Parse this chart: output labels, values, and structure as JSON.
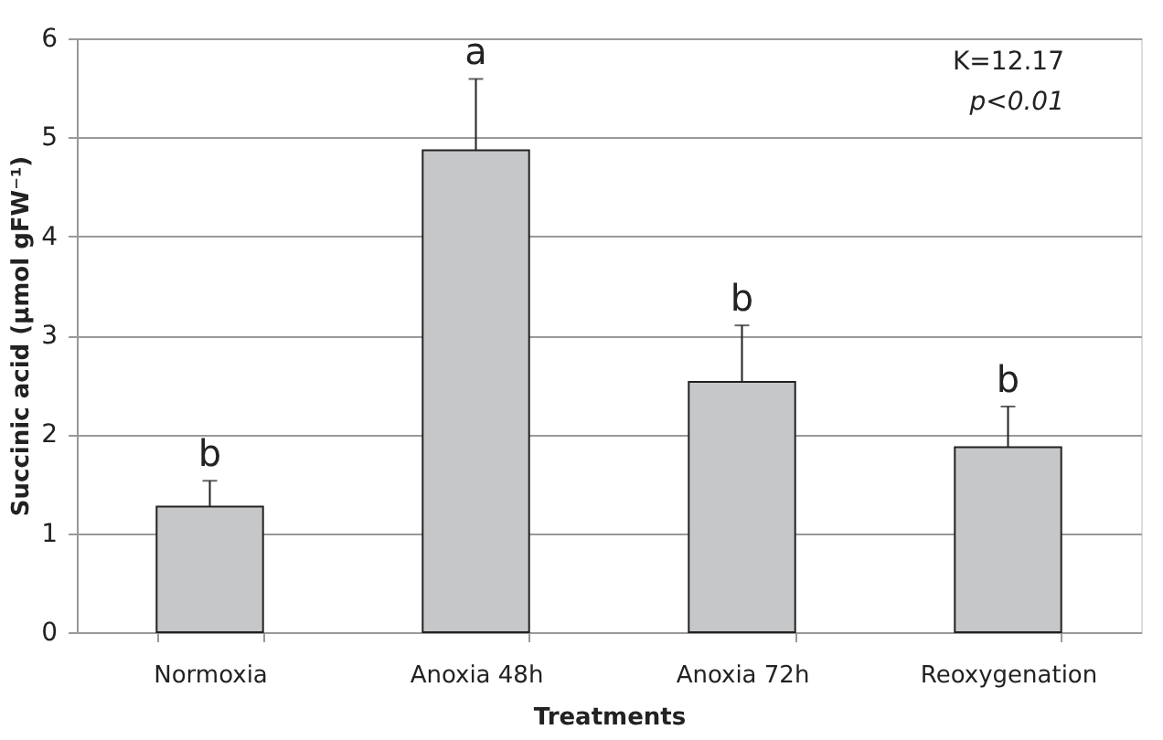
{
  "chart_data": {
    "type": "bar",
    "xlabel": "Treatments",
    "ylabel": "Succinic acid (µmol gFW⁻¹)",
    "categories": [
      "Normoxia",
      "Anoxia 48h",
      "Anoxia 72h",
      "Reoxygenation"
    ],
    "values": [
      1.27,
      4.87,
      2.53,
      1.87
    ],
    "errors": [
      [
        1.27,
        1.53
      ],
      [
        4.87,
        5.59
      ],
      [
        2.53,
        3.1
      ],
      [
        1.87,
        2.28
      ]
    ],
    "color": "#c6c7c9",
    "ylim": [
      0,
      6
    ],
    "yticks": [
      0,
      1,
      2,
      3,
      4,
      5,
      6
    ],
    "grid": "y",
    "annotations": [
      {
        "text": "b",
        "x": "Normoxia",
        "y": 1.53
      },
      {
        "text": "a",
        "x": "Anoxia 48h",
        "y": 5.59
      },
      {
        "text": "b",
        "x": "Anoxia 72h",
        "y": 3.1
      },
      {
        "text": "b",
        "x": "Reoxygenation",
        "y": 2.28
      },
      "K=12.17",
      "p<0.01"
    ]
  }
}
